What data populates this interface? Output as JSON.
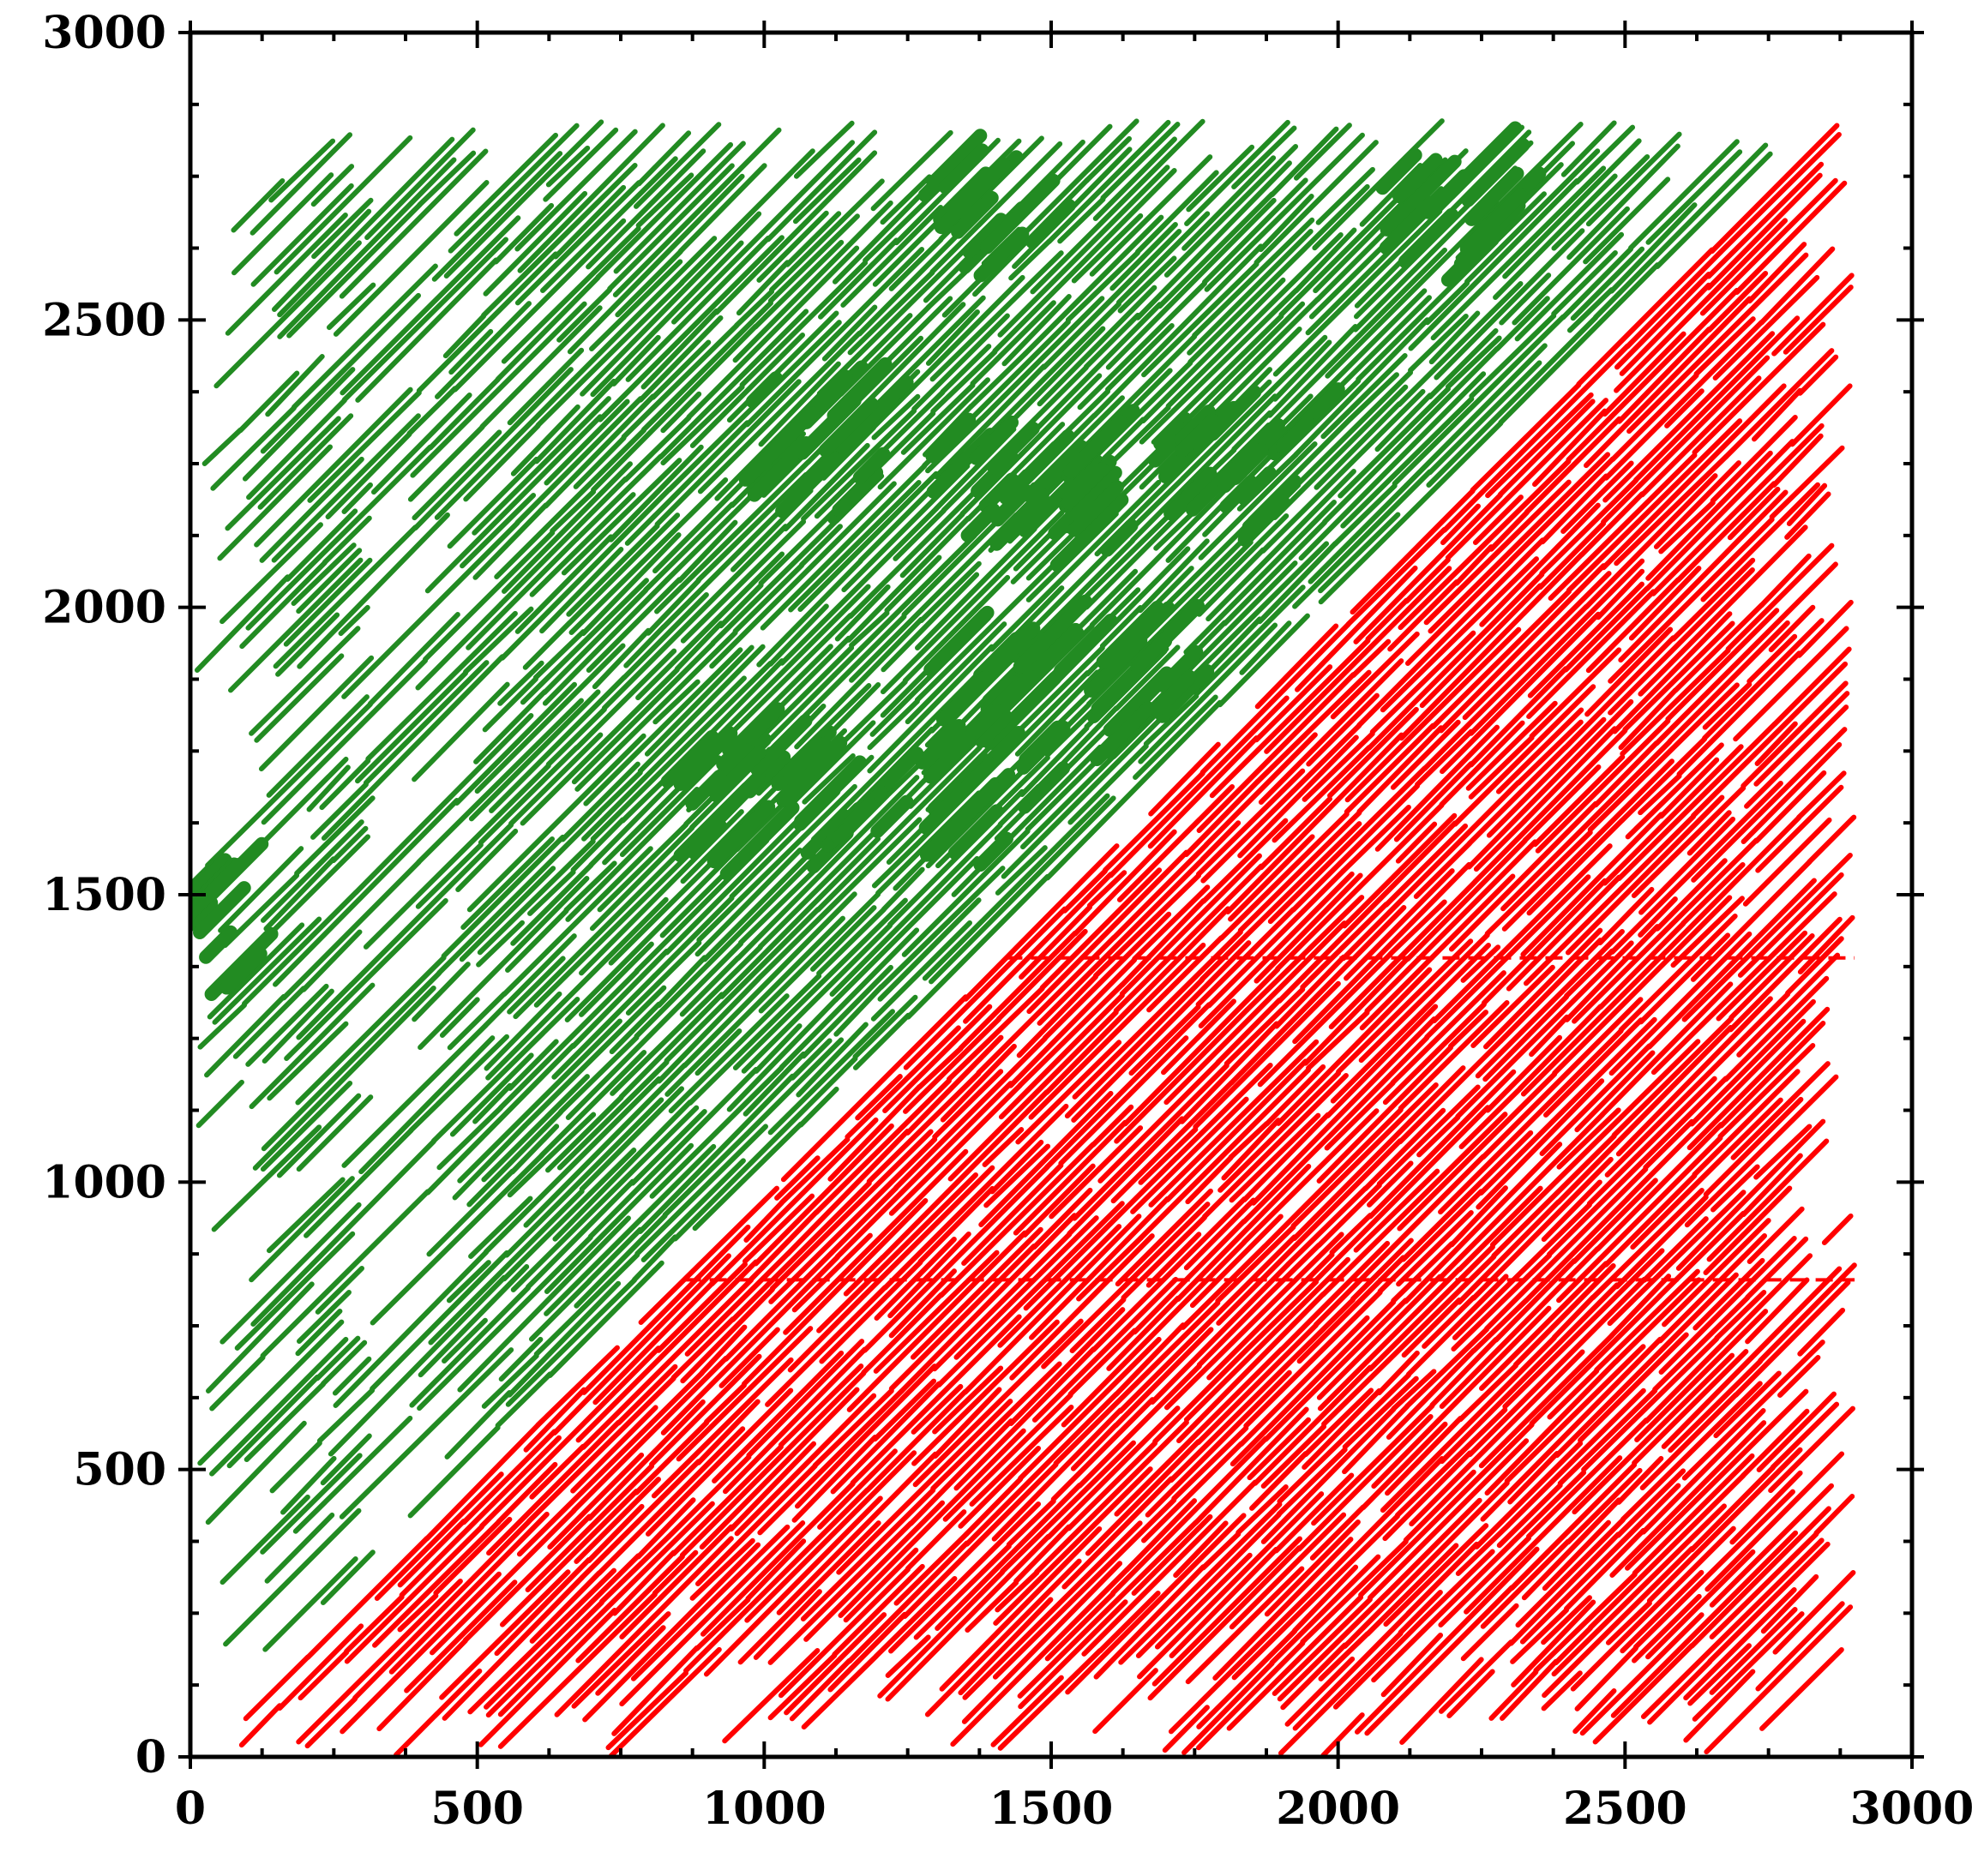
{
  "chart_data": {
    "type": "scatter",
    "title": "",
    "xlabel": "",
    "ylabel": "",
    "xlim": [
      0,
      3000
    ],
    "ylim": [
      0,
      3000
    ],
    "x_ticks": [
      "0",
      "500",
      "1000",
      "1500",
      "2000",
      "2500",
      "3000"
    ],
    "y_ticks": [
      "0",
      "500",
      "1000",
      "1500",
      "2000",
      "2500",
      "3000"
    ],
    "grid": false,
    "legend": "none",
    "series": [
      {
        "color": "#228b22",
        "region": "upper-left triangle: 0 <= x <= 2850, y >= x, y <= 2850",
        "pattern": "dense diagonal stripes, slope ~1, spacing ~40 units",
        "gap_band_x": [
          320,
          380
        ],
        "dense_clusters": [
          {
            "x": 1410,
            "y": 2200
          },
          {
            "x": 1650,
            "y": 2220
          },
          {
            "x": 1420,
            "y": 1880
          },
          {
            "x": 1660,
            "y": 1880
          },
          {
            "x": 1400,
            "y": 1670
          },
          {
            "x": 1100,
            "y": 2280
          },
          {
            "x": 1850,
            "y": 2250
          },
          {
            "x": 1400,
            "y": 2680
          },
          {
            "x": 2200,
            "y": 2700
          },
          {
            "x": 0,
            "y": 1450
          },
          {
            "x": 950,
            "y": 1690
          },
          {
            "x": 1150,
            "y": 1650
          }
        ]
      },
      {
        "color": "#ff0000",
        "region": "lower-right triangle: 0 <= x <= 2900, y <= x",
        "pattern": "dense diagonal stripes, slope ~1, spacing ~40 units",
        "horizontal_lines_y": [
          830,
          1390
        ]
      }
    ]
  }
}
